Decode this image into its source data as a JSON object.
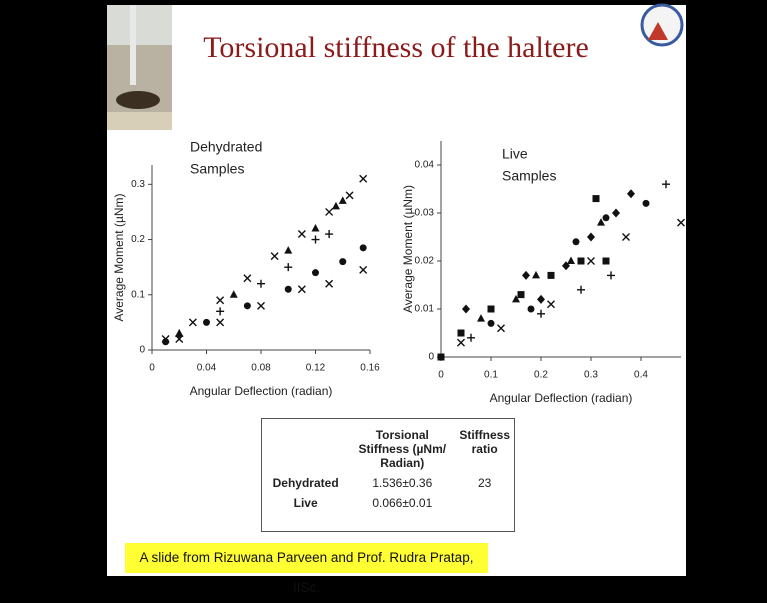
{
  "title": "Torsional stiffness of the haltere",
  "chart_data": [
    {
      "type": "scatter",
      "annotations": [
        "Dehydrated",
        "Samples"
      ],
      "x_label": "Angular Deflection (radian)",
      "y_label": "Average Moment (µNm)",
      "xlim": [
        0,
        0.16
      ],
      "xticks": [
        0,
        0.04,
        0.08,
        0.12,
        0.16
      ],
      "ylim": [
        0,
        0.335
      ],
      "yticks": [
        0,
        0.1,
        0.2,
        0.3
      ],
      "grid": false,
      "series": [
        {
          "marker": "x",
          "color": "#111",
          "x": [
            0.01,
            0.03,
            0.05,
            0.07,
            0.09,
            0.11,
            0.13,
            0.145,
            0.155
          ],
          "values": [
            0.02,
            0.05,
            0.09,
            0.13,
            0.17,
            0.21,
            0.25,
            0.28,
            0.31
          ]
        },
        {
          "marker": "triangle",
          "color": "#111",
          "x": [
            0.02,
            0.06,
            0.1,
            0.12,
            0.135,
            0.14
          ],
          "values": [
            0.03,
            0.1,
            0.18,
            0.22,
            0.26,
            0.27
          ]
        },
        {
          "marker": "plus",
          "color": "#111",
          "x": [
            0.02,
            0.05,
            0.08,
            0.1,
            0.12,
            0.13
          ],
          "values": [
            0.025,
            0.07,
            0.12,
            0.15,
            0.2,
            0.21
          ]
        },
        {
          "marker": "circle",
          "color": "#111",
          "x": [
            0.01,
            0.04,
            0.07,
            0.1,
            0.12,
            0.14,
            0.155
          ],
          "values": [
            0.015,
            0.05,
            0.08,
            0.11,
            0.14,
            0.16,
            0.185
          ]
        },
        {
          "marker": "x",
          "color": "#111",
          "x": [
            0.02,
            0.05,
            0.08,
            0.11,
            0.13,
            0.155
          ],
          "values": [
            0.02,
            0.05,
            0.08,
            0.11,
            0.12,
            0.145
          ]
        }
      ]
    },
    {
      "type": "scatter",
      "annotations": [
        "Live",
        "Samples"
      ],
      "x_label": "Angular Deflection (radian)",
      "y_label": "Average Moment (µNm)",
      "xlim": [
        0,
        0.48
      ],
      "xticks": [
        0,
        0.1,
        0.2,
        0.3,
        0.4
      ],
      "ylim": [
        0,
        0.045
      ],
      "yticks": [
        0,
        0.01,
        0.02,
        0.03,
        0.04
      ],
      "grid": false,
      "series": [
        {
          "marker": "square",
          "color": "#111",
          "x": [
            0,
            0.04,
            0.1,
            0.16,
            0.22,
            0.28,
            0.31,
            0.33
          ],
          "values": [
            0,
            0.005,
            0.01,
            0.013,
            0.017,
            0.02,
            0.033,
            0.02
          ]
        },
        {
          "marker": "diamond",
          "color": "#111",
          "x": [
            0.05,
            0.17,
            0.2,
            0.25,
            0.3,
            0.35,
            0.38
          ],
          "values": [
            0.01,
            0.017,
            0.012,
            0.019,
            0.025,
            0.03,
            0.034
          ]
        },
        {
          "marker": "triangle",
          "color": "#111",
          "x": [
            0.08,
            0.15,
            0.19,
            0.26,
            0.32
          ],
          "values": [
            0.008,
            0.012,
            0.017,
            0.02,
            0.028
          ]
        },
        {
          "marker": "circle",
          "color": "#111",
          "x": [
            0.1,
            0.18,
            0.27,
            0.33,
            0.41
          ],
          "values": [
            0.007,
            0.01,
            0.024,
            0.029,
            0.032
          ]
        },
        {
          "marker": "x",
          "color": "#111",
          "x": [
            0.04,
            0.12,
            0.22,
            0.3,
            0.37,
            0.48
          ],
          "values": [
            0.003,
            0.006,
            0.011,
            0.02,
            0.025,
            0.028
          ]
        },
        {
          "marker": "plus",
          "color": "#111",
          "x": [
            0.06,
            0.2,
            0.28,
            0.34,
            0.45
          ],
          "values": [
            0.004,
            0.009,
            0.014,
            0.017,
            0.036
          ]
        }
      ]
    }
  ],
  "table": {
    "header": [
      "Torsional Stiffness (µNm/ Radian)",
      "Stiffness ratio"
    ],
    "rows": [
      [
        "Dehydrated",
        "1.536±0.36",
        "23"
      ],
      [
        "Live",
        "0.066±0.01"
      ]
    ]
  },
  "caption": "A slide from Rizuwana Parveen and Prof. Rudra Pratap, IISc."
}
